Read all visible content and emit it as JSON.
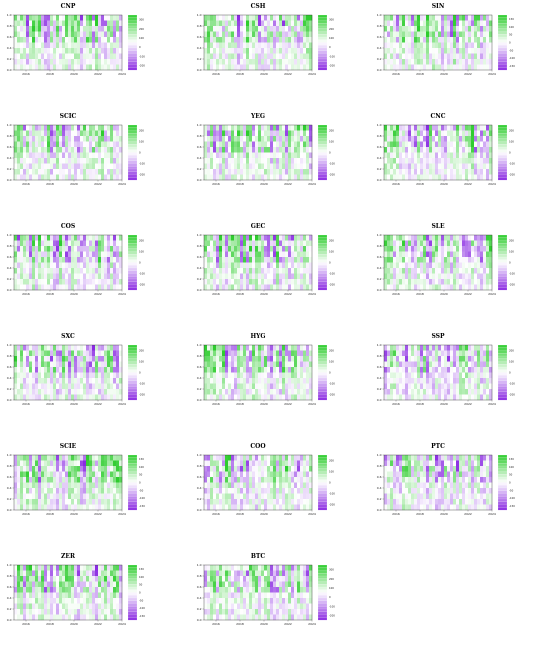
{
  "chart_data": [
    {
      "type": "heatmap",
      "title": "CNP",
      "x_ticks": [
        "2016",
        "2018",
        "2020",
        "2022",
        "2024"
      ],
      "y_ticks": [
        "0.0",
        "0.2",
        "0.4",
        "0.6",
        "0.8",
        "1.0"
      ],
      "colorbar_ticks": [
        "300",
        "200",
        "100",
        "0",
        "-100",
        "-200"
      ],
      "xlim": [
        2015,
        2024
      ],
      "ylim": [
        0,
        1
      ]
    },
    {
      "type": "heatmap",
      "title": "CSH",
      "x_ticks": [
        "2016",
        "2018",
        "2020",
        "2022",
        "2024"
      ],
      "y_ticks": [
        "0.0",
        "0.2",
        "0.4",
        "0.6",
        "0.8",
        "1.0"
      ],
      "colorbar_ticks": [
        "300",
        "200",
        "100",
        "0",
        "-100",
        "-200"
      ],
      "xlim": [
        2015,
        2024
      ],
      "ylim": [
        0,
        1
      ]
    },
    {
      "type": "heatmap",
      "title": "SIN",
      "x_ticks": [
        "2016",
        "2018",
        "2020",
        "2022",
        "2024"
      ],
      "y_ticks": [
        "0.0",
        "0.2",
        "0.4",
        "0.6",
        "0.8",
        "1.0"
      ],
      "colorbar_ticks": [
        "150",
        "100",
        "50",
        "0",
        "-50",
        "-100",
        "-150"
      ],
      "xlim": [
        2015,
        2024
      ],
      "ylim": [
        0,
        1
      ]
    },
    {
      "type": "heatmap",
      "title": "SCIC",
      "x_ticks": [
        "2016",
        "2018",
        "2020",
        "2022",
        "2024"
      ],
      "y_ticks": [
        "0.0",
        "0.2",
        "0.4",
        "0.6",
        "0.8",
        "1.0"
      ],
      "colorbar_ticks": [
        "200",
        "100",
        "0",
        "-100",
        "-200"
      ],
      "xlim": [
        2015,
        2024
      ],
      "ylim": [
        0,
        1
      ]
    },
    {
      "type": "heatmap",
      "title": "YEG",
      "x_ticks": [
        "2016",
        "2018",
        "2020",
        "2022",
        "2024"
      ],
      "y_ticks": [
        "0.0",
        "0.2",
        "0.4",
        "0.6",
        "0.8",
        "1.0"
      ],
      "colorbar_ticks": [
        "200",
        "100",
        "0",
        "-100",
        "-200"
      ],
      "xlim": [
        2015,
        2024
      ],
      "ylim": [
        0,
        1
      ]
    },
    {
      "type": "heatmap",
      "title": "CNC",
      "x_ticks": [
        "2016",
        "2018",
        "2020",
        "2022",
        "2024"
      ],
      "y_ticks": [
        "0.0",
        "0.2",
        "0.4",
        "0.6",
        "0.8",
        "1.0"
      ],
      "colorbar_ticks": [
        "200",
        "100",
        "0",
        "-100",
        "-200"
      ],
      "xlim": [
        2015,
        2024
      ],
      "ylim": [
        0,
        1
      ]
    },
    {
      "type": "heatmap",
      "title": "COS",
      "x_ticks": [
        "2016",
        "2018",
        "2020",
        "2022",
        "2024"
      ],
      "y_ticks": [
        "0.0",
        "0.2",
        "0.4",
        "0.6",
        "0.8",
        "1.0"
      ],
      "colorbar_ticks": [
        "200",
        "100",
        "0",
        "-100",
        "-200"
      ],
      "xlim": [
        2015,
        2024
      ],
      "ylim": [
        0,
        1
      ]
    },
    {
      "type": "heatmap",
      "title": "GEC",
      "x_ticks": [
        "2016",
        "2018",
        "2020",
        "2022",
        "2024"
      ],
      "y_ticks": [
        "0.0",
        "0.2",
        "0.4",
        "0.6",
        "0.8",
        "1.0"
      ],
      "colorbar_ticks": [
        "200",
        "100",
        "0",
        "-100",
        "-200"
      ],
      "xlim": [
        2015,
        2024
      ],
      "ylim": [
        0,
        1
      ]
    },
    {
      "type": "heatmap",
      "title": "SLE",
      "x_ticks": [
        "2016",
        "2018",
        "2020",
        "2022",
        "2024"
      ],
      "y_ticks": [
        "0.0",
        "0.2",
        "0.4",
        "0.6",
        "0.8",
        "1.0"
      ],
      "colorbar_ticks": [
        "200",
        "100",
        "0",
        "-100",
        "-200"
      ],
      "xlim": [
        2015,
        2024
      ],
      "ylim": [
        0,
        1
      ]
    },
    {
      "type": "heatmap",
      "title": "SXC",
      "x_ticks": [
        "2016",
        "2018",
        "2020",
        "2022",
        "2024"
      ],
      "y_ticks": [
        "0.0",
        "0.2",
        "0.4",
        "0.6",
        "0.8",
        "1.0"
      ],
      "colorbar_ticks": [
        "200",
        "100",
        "0",
        "-100",
        "-200"
      ],
      "xlim": [
        2015,
        2024
      ],
      "ylim": [
        0,
        1
      ]
    },
    {
      "type": "heatmap",
      "title": "HYG",
      "x_ticks": [
        "2016",
        "2018",
        "2020",
        "2022",
        "2024"
      ],
      "y_ticks": [
        "0.0",
        "0.2",
        "0.4",
        "0.6",
        "0.8",
        "1.0"
      ],
      "colorbar_ticks": [
        "200",
        "100",
        "0",
        "-100",
        "-200"
      ],
      "xlim": [
        2015,
        2024
      ],
      "ylim": [
        0,
        1
      ]
    },
    {
      "type": "heatmap",
      "title": "SSP",
      "x_ticks": [
        "2016",
        "2018",
        "2020",
        "2022",
        "2024"
      ],
      "y_ticks": [
        "0.0",
        "0.2",
        "0.4",
        "0.6",
        "0.8",
        "1.0"
      ],
      "colorbar_ticks": [
        "200",
        "100",
        "0",
        "-100",
        "-200"
      ],
      "xlim": [
        2015,
        2024
      ],
      "ylim": [
        0,
        1
      ]
    },
    {
      "type": "heatmap",
      "title": "SCIE",
      "x_ticks": [
        "2016",
        "2018",
        "2020",
        "2022",
        "2024"
      ],
      "y_ticks": [
        "0.0",
        "0.2",
        "0.4",
        "0.6",
        "0.8",
        "1.0"
      ],
      "colorbar_ticks": [
        "150",
        "100",
        "50",
        "0",
        "-50",
        "-100",
        "-150"
      ],
      "xlim": [
        2015,
        2024
      ],
      "ylim": [
        0,
        1
      ]
    },
    {
      "type": "heatmap",
      "title": "COO",
      "x_ticks": [
        "2016",
        "2018",
        "2020",
        "2022",
        "2024"
      ],
      "y_ticks": [
        "0.0",
        "0.2",
        "0.4",
        "0.6",
        "0.8",
        "1.0"
      ],
      "colorbar_ticks": [
        "200",
        "100",
        "0",
        "-100",
        "-200"
      ],
      "xlim": [
        2015,
        2024
      ],
      "ylim": [
        0,
        1
      ]
    },
    {
      "type": "heatmap",
      "title": "PTC",
      "x_ticks": [
        "2016",
        "2018",
        "2020",
        "2022",
        "2024"
      ],
      "y_ticks": [
        "0.0",
        "0.2",
        "0.4",
        "0.6",
        "0.8",
        "1.0"
      ],
      "colorbar_ticks": [
        "150",
        "100",
        "50",
        "0",
        "-50",
        "-100",
        "-150"
      ],
      "xlim": [
        2015,
        2024
      ],
      "ylim": [
        0,
        1
      ]
    },
    {
      "type": "heatmap",
      "title": "ZER",
      "x_ticks": [
        "2016",
        "2018",
        "2020",
        "2022",
        "2024"
      ],
      "y_ticks": [
        "0.0",
        "0.2",
        "0.4",
        "0.6",
        "0.8",
        "1.0"
      ],
      "colorbar_ticks": [
        "150",
        "100",
        "50",
        "0",
        "-50",
        "-100",
        "-150"
      ],
      "xlim": [
        2015,
        2024
      ],
      "ylim": [
        0,
        1
      ]
    },
    {
      "type": "heatmap",
      "title": "BTC",
      "x_ticks": [
        "2016",
        "2018",
        "2020",
        "2022",
        "2024"
      ],
      "y_ticks": [
        "0.0",
        "0.2",
        "0.4",
        "0.6",
        "0.8",
        "1.0"
      ],
      "colorbar_ticks": [
        "300",
        "200",
        "100",
        "0",
        "-100",
        "-200"
      ],
      "xlim": [
        2015,
        2024
      ],
      "ylim": [
        0,
        1
      ]
    }
  ],
  "colors": {
    "high": "#2ecc2e",
    "mid": "#ffffff",
    "low": "#8a2be2",
    "grid": "#000000"
  }
}
